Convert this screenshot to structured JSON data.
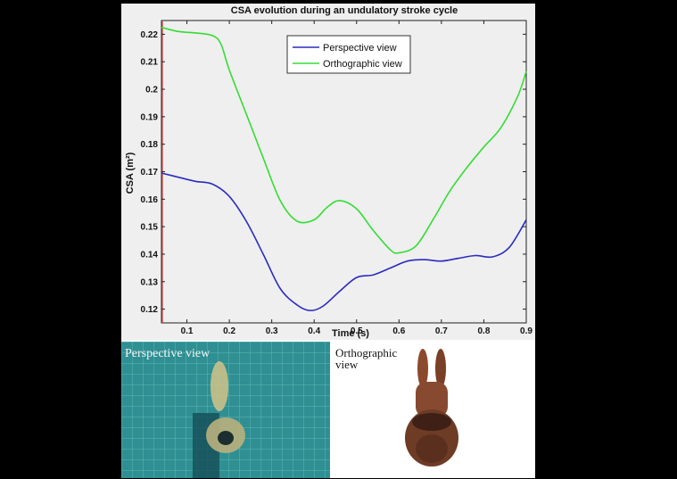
{
  "chart_data": {
    "type": "line",
    "title": "CSA evolution during an undulatory stroke cycle",
    "xlabel": "Time (s)",
    "ylabel": "CSA (m²)",
    "xlim": [
      0.04,
      0.9
    ],
    "ylim": [
      0.115,
      0.225
    ],
    "xticks": [
      0.1,
      0.2,
      0.3,
      0.4,
      0.5,
      0.6,
      0.7,
      0.8,
      0.9
    ],
    "yticks": [
      0.12,
      0.13,
      0.14,
      0.15,
      0.16,
      0.17,
      0.18,
      0.19,
      0.2,
      0.21,
      0.22
    ],
    "legend_position": "top-center",
    "grid": false,
    "series": [
      {
        "name": "Perspective view",
        "color": "#2b2bbf",
        "x": [
          0.04,
          0.08,
          0.12,
          0.16,
          0.2,
          0.24,
          0.28,
          0.32,
          0.36,
          0.39,
          0.42,
          0.46,
          0.5,
          0.54,
          0.58,
          0.62,
          0.66,
          0.7,
          0.74,
          0.78,
          0.82,
          0.86,
          0.9
        ],
        "y": [
          0.1695,
          0.168,
          0.1665,
          0.1655,
          0.161,
          0.152,
          0.14,
          0.1275,
          0.1215,
          0.1195,
          0.121,
          0.1265,
          0.1315,
          0.1325,
          0.135,
          0.1375,
          0.138,
          0.1375,
          0.1385,
          0.1395,
          0.139,
          0.1425,
          0.1525
        ]
      },
      {
        "name": "Orthographic view",
        "color": "#33dd33",
        "x": [
          0.04,
          0.08,
          0.12,
          0.16,
          0.18,
          0.2,
          0.24,
          0.28,
          0.32,
          0.36,
          0.4,
          0.43,
          0.46,
          0.5,
          0.54,
          0.58,
          0.6,
          0.64,
          0.68,
          0.72,
          0.76,
          0.8,
          0.84,
          0.88,
          0.9
        ],
        "y": [
          0.2225,
          0.221,
          0.2205,
          0.2195,
          0.2165,
          0.207,
          0.191,
          0.175,
          0.1595,
          0.152,
          0.1525,
          0.157,
          0.1595,
          0.1565,
          0.1485,
          0.1415,
          0.1405,
          0.143,
          0.1525,
          0.163,
          0.1715,
          0.179,
          0.186,
          0.1975,
          0.2065
        ]
      }
    ]
  },
  "photos": {
    "left_label": "Perspective view",
    "right_label": "Orthographic view"
  }
}
